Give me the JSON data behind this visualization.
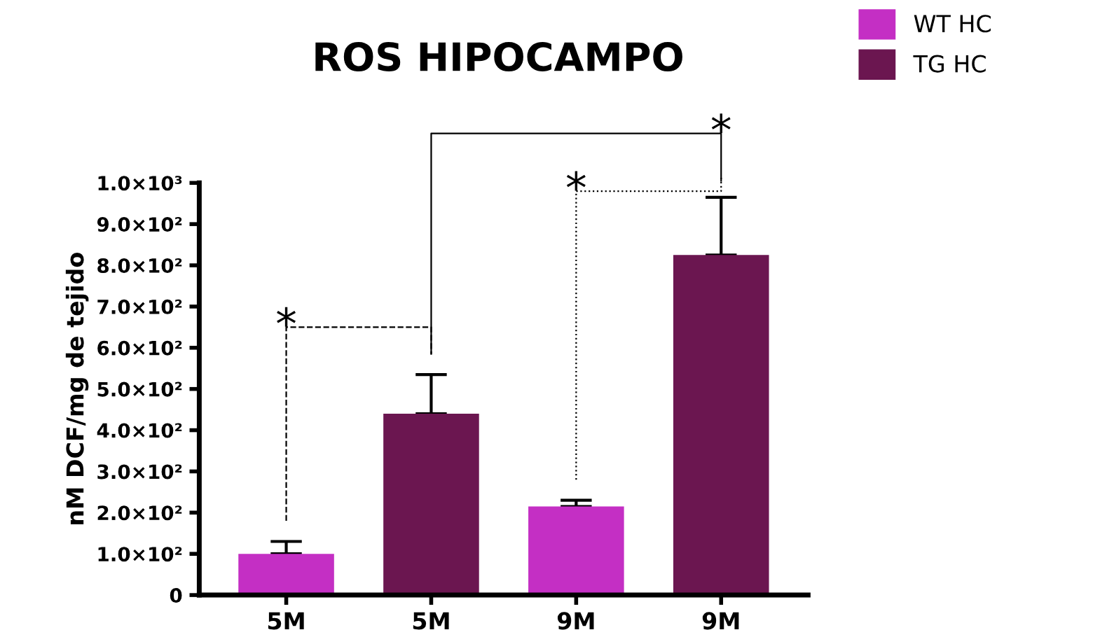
{
  "chart_data": {
    "type": "bar",
    "title": "ROS HIPOCAMPO",
    "ylabel": "nM DCF/mg de tejido",
    "categories": [
      "5M",
      "5M",
      "9M",
      "9M"
    ],
    "series": [
      {
        "name": "WT HC",
        "color": "#c42fc4",
        "values": [
          100,
          null,
          215,
          null
        ],
        "errors": [
          [
            100,
            130
          ],
          null,
          [
            215,
            230
          ],
          null
        ]
      },
      {
        "name": "TG HC",
        "color": "#6b1650",
        "values": [
          null,
          440,
          null,
          825
        ],
        "errors": [
          null,
          [
            440,
            535
          ],
          null,
          [
            825,
            965
          ]
        ]
      }
    ],
    "ylim": [
      0,
      1000
    ],
    "yticks": [
      0,
      {
        "value": 100,
        "label": "1.0×10²"
      },
      {
        "value": 200,
        "label": "2.0×10²"
      },
      {
        "value": 300,
        "label": "3.0×10²"
      },
      {
        "value": 400,
        "label": "4.0×10²"
      },
      {
        "value": 500,
        "label": "5.0×10²"
      },
      {
        "value": 600,
        "label": "6.0×10²"
      },
      {
        "value": 700,
        "label": "7.0×10²"
      },
      {
        "value": 800,
        "label": "8.0×10²"
      },
      {
        "value": 900,
        "label": "9.0×10²"
      },
      {
        "value": 1000,
        "label": "1.0×10³"
      }
    ],
    "annotations": [
      "*",
      "*",
      "*"
    ],
    "legend": "top right",
    "grid": false
  }
}
